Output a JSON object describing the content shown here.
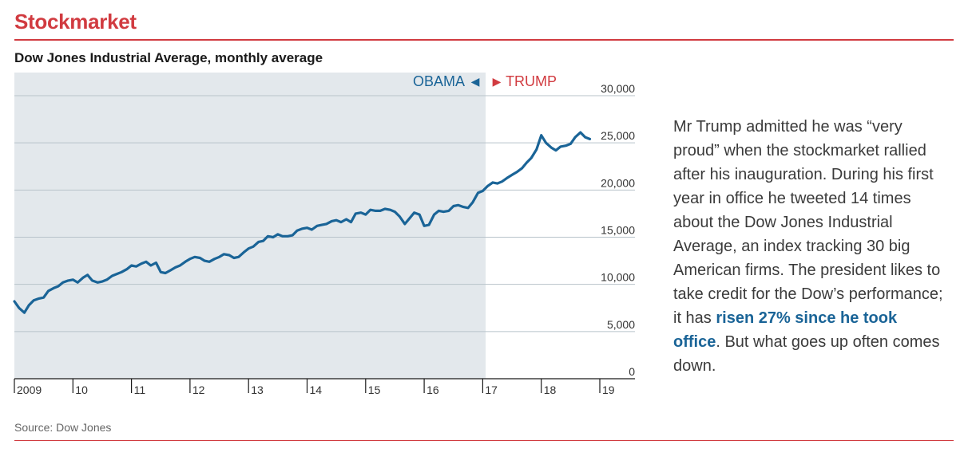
{
  "section_title": "Stockmarket",
  "chart_title": "Dow Jones Industrial Average, monthly average",
  "source": "Source: Dow Jones",
  "annotation": {
    "part1": "Mr Trump admitted he was “very proud” when the stockmarket rallied after his inauguration. During his first year in office he tweeted 14 times about the Dow Jones Industrial Average, an index tracking 30 big American firms. The president likes to take credit for the Dow’s performance; it has ",
    "highlight": "risen 27% since he took office",
    "part2": ". But what goes up often comes down."
  },
  "colors": {
    "accent": "#d13b40",
    "line": "#1a6497",
    "shade": "#e3e8ec",
    "grid": "#b8c3ca"
  },
  "chart_data": {
    "type": "line",
    "title": "Dow Jones Industrial Average, monthly average",
    "xlabel": "",
    "ylabel": "",
    "ylim": [
      0,
      30000
    ],
    "xlim": [
      2009,
      2019
    ],
    "y_ticks": [
      0,
      5000,
      10000,
      15000,
      20000,
      25000,
      30000
    ],
    "y_tick_labels": [
      "0",
      "5,000",
      "10,000",
      "15,000",
      "20,000",
      "25,000",
      "30,000"
    ],
    "x_ticks": [
      2009,
      2010,
      2011,
      2012,
      2013,
      2014,
      2015,
      2016,
      2017,
      2018,
      2019
    ],
    "x_tick_labels": [
      "2009",
      "10",
      "11",
      "12",
      "13",
      "14",
      "15",
      "16",
      "17",
      "18",
      "19"
    ],
    "grid": true,
    "shaded_region": {
      "from": 2009,
      "to": 2017.05
    },
    "period_labels": [
      {
        "text": "OBAMA",
        "arrow": "◀",
        "color": "#1a6497"
      },
      {
        "text": "TRUMP",
        "arrow": "▶",
        "color": "#d13b40"
      }
    ],
    "series": [
      {
        "x": [
          2009.0,
          2009.08,
          2009.17,
          2009.25,
          2009.33,
          2009.42,
          2009.5,
          2009.58,
          2009.67,
          2009.75,
          2009.83,
          2009.92,
          2010.0,
          2010.08,
          2010.17,
          2010.25,
          2010.33,
          2010.42,
          2010.5,
          2010.58,
          2010.67,
          2010.75,
          2010.83,
          2010.92,
          2011.0,
          2011.08,
          2011.17,
          2011.25,
          2011.33,
          2011.42,
          2011.5,
          2011.58,
          2011.67,
          2011.75,
          2011.83,
          2011.92,
          2012.0,
          2012.08,
          2012.17,
          2012.25,
          2012.33,
          2012.42,
          2012.5,
          2012.58,
          2012.67,
          2012.75,
          2012.83,
          2012.92,
          2013.0,
          2013.08,
          2013.17,
          2013.25,
          2013.33,
          2013.42,
          2013.5,
          2013.58,
          2013.67,
          2013.75,
          2013.83,
          2013.92,
          2014.0,
          2014.08,
          2014.17,
          2014.25,
          2014.33,
          2014.42,
          2014.5,
          2014.58,
          2014.67,
          2014.75,
          2014.83,
          2014.92,
          2015.0,
          2015.08,
          2015.17,
          2015.25,
          2015.33,
          2015.42,
          2015.5,
          2015.58,
          2015.67,
          2015.75,
          2015.83,
          2015.92,
          2016.0,
          2016.08,
          2016.17,
          2016.25,
          2016.33,
          2016.42,
          2016.5,
          2016.58,
          2016.67,
          2016.75,
          2016.83,
          2016.92,
          2017.0,
          2017.08,
          2017.17,
          2017.25,
          2017.33,
          2017.42,
          2017.5,
          2017.58,
          2017.67,
          2017.75,
          2017.83,
          2017.92,
          2018.0,
          2018.08,
          2018.17,
          2018.25,
          2018.33,
          2018.42,
          2018.5,
          2018.58,
          2018.67,
          2018.75,
          2018.83
        ],
        "values": [
          8200,
          7500,
          7000,
          7800,
          8300,
          8500,
          8600,
          9300,
          9600,
          9800,
          10200,
          10400,
          10500,
          10200,
          10700,
          11000,
          10400,
          10200,
          10300,
          10500,
          10900,
          11100,
          11300,
          11600,
          12000,
          11900,
          12200,
          12400,
          12000,
          12300,
          11300,
          11200,
          11500,
          11800,
          12000,
          12400,
          12700,
          12900,
          12800,
          12500,
          12400,
          12700,
          12900,
          13200,
          13100,
          12800,
          12900,
          13400,
          13800,
          14000,
          14500,
          14600,
          15100,
          15000,
          15300,
          15100,
          15100,
          15200,
          15700,
          15900,
          16000,
          15800,
          16200,
          16300,
          16400,
          16700,
          16800,
          16600,
          16900,
          16600,
          17500,
          17600,
          17400,
          17900,
          17800,
          17800,
          18000,
          17900,
          17700,
          17200,
          16400,
          17000,
          17600,
          17400,
          16200,
          16300,
          17400,
          17800,
          17700,
          17800,
          18300,
          18400,
          18200,
          18100,
          18700,
          19700,
          19900,
          20400,
          20800,
          20700,
          20900,
          21300,
          21600,
          21900,
          22300,
          22900,
          23400,
          24300,
          25800,
          25000,
          24500,
          24200,
          24600,
          24700,
          24900,
          25600,
          26100,
          25600,
          25400
        ]
      }
    ]
  }
}
